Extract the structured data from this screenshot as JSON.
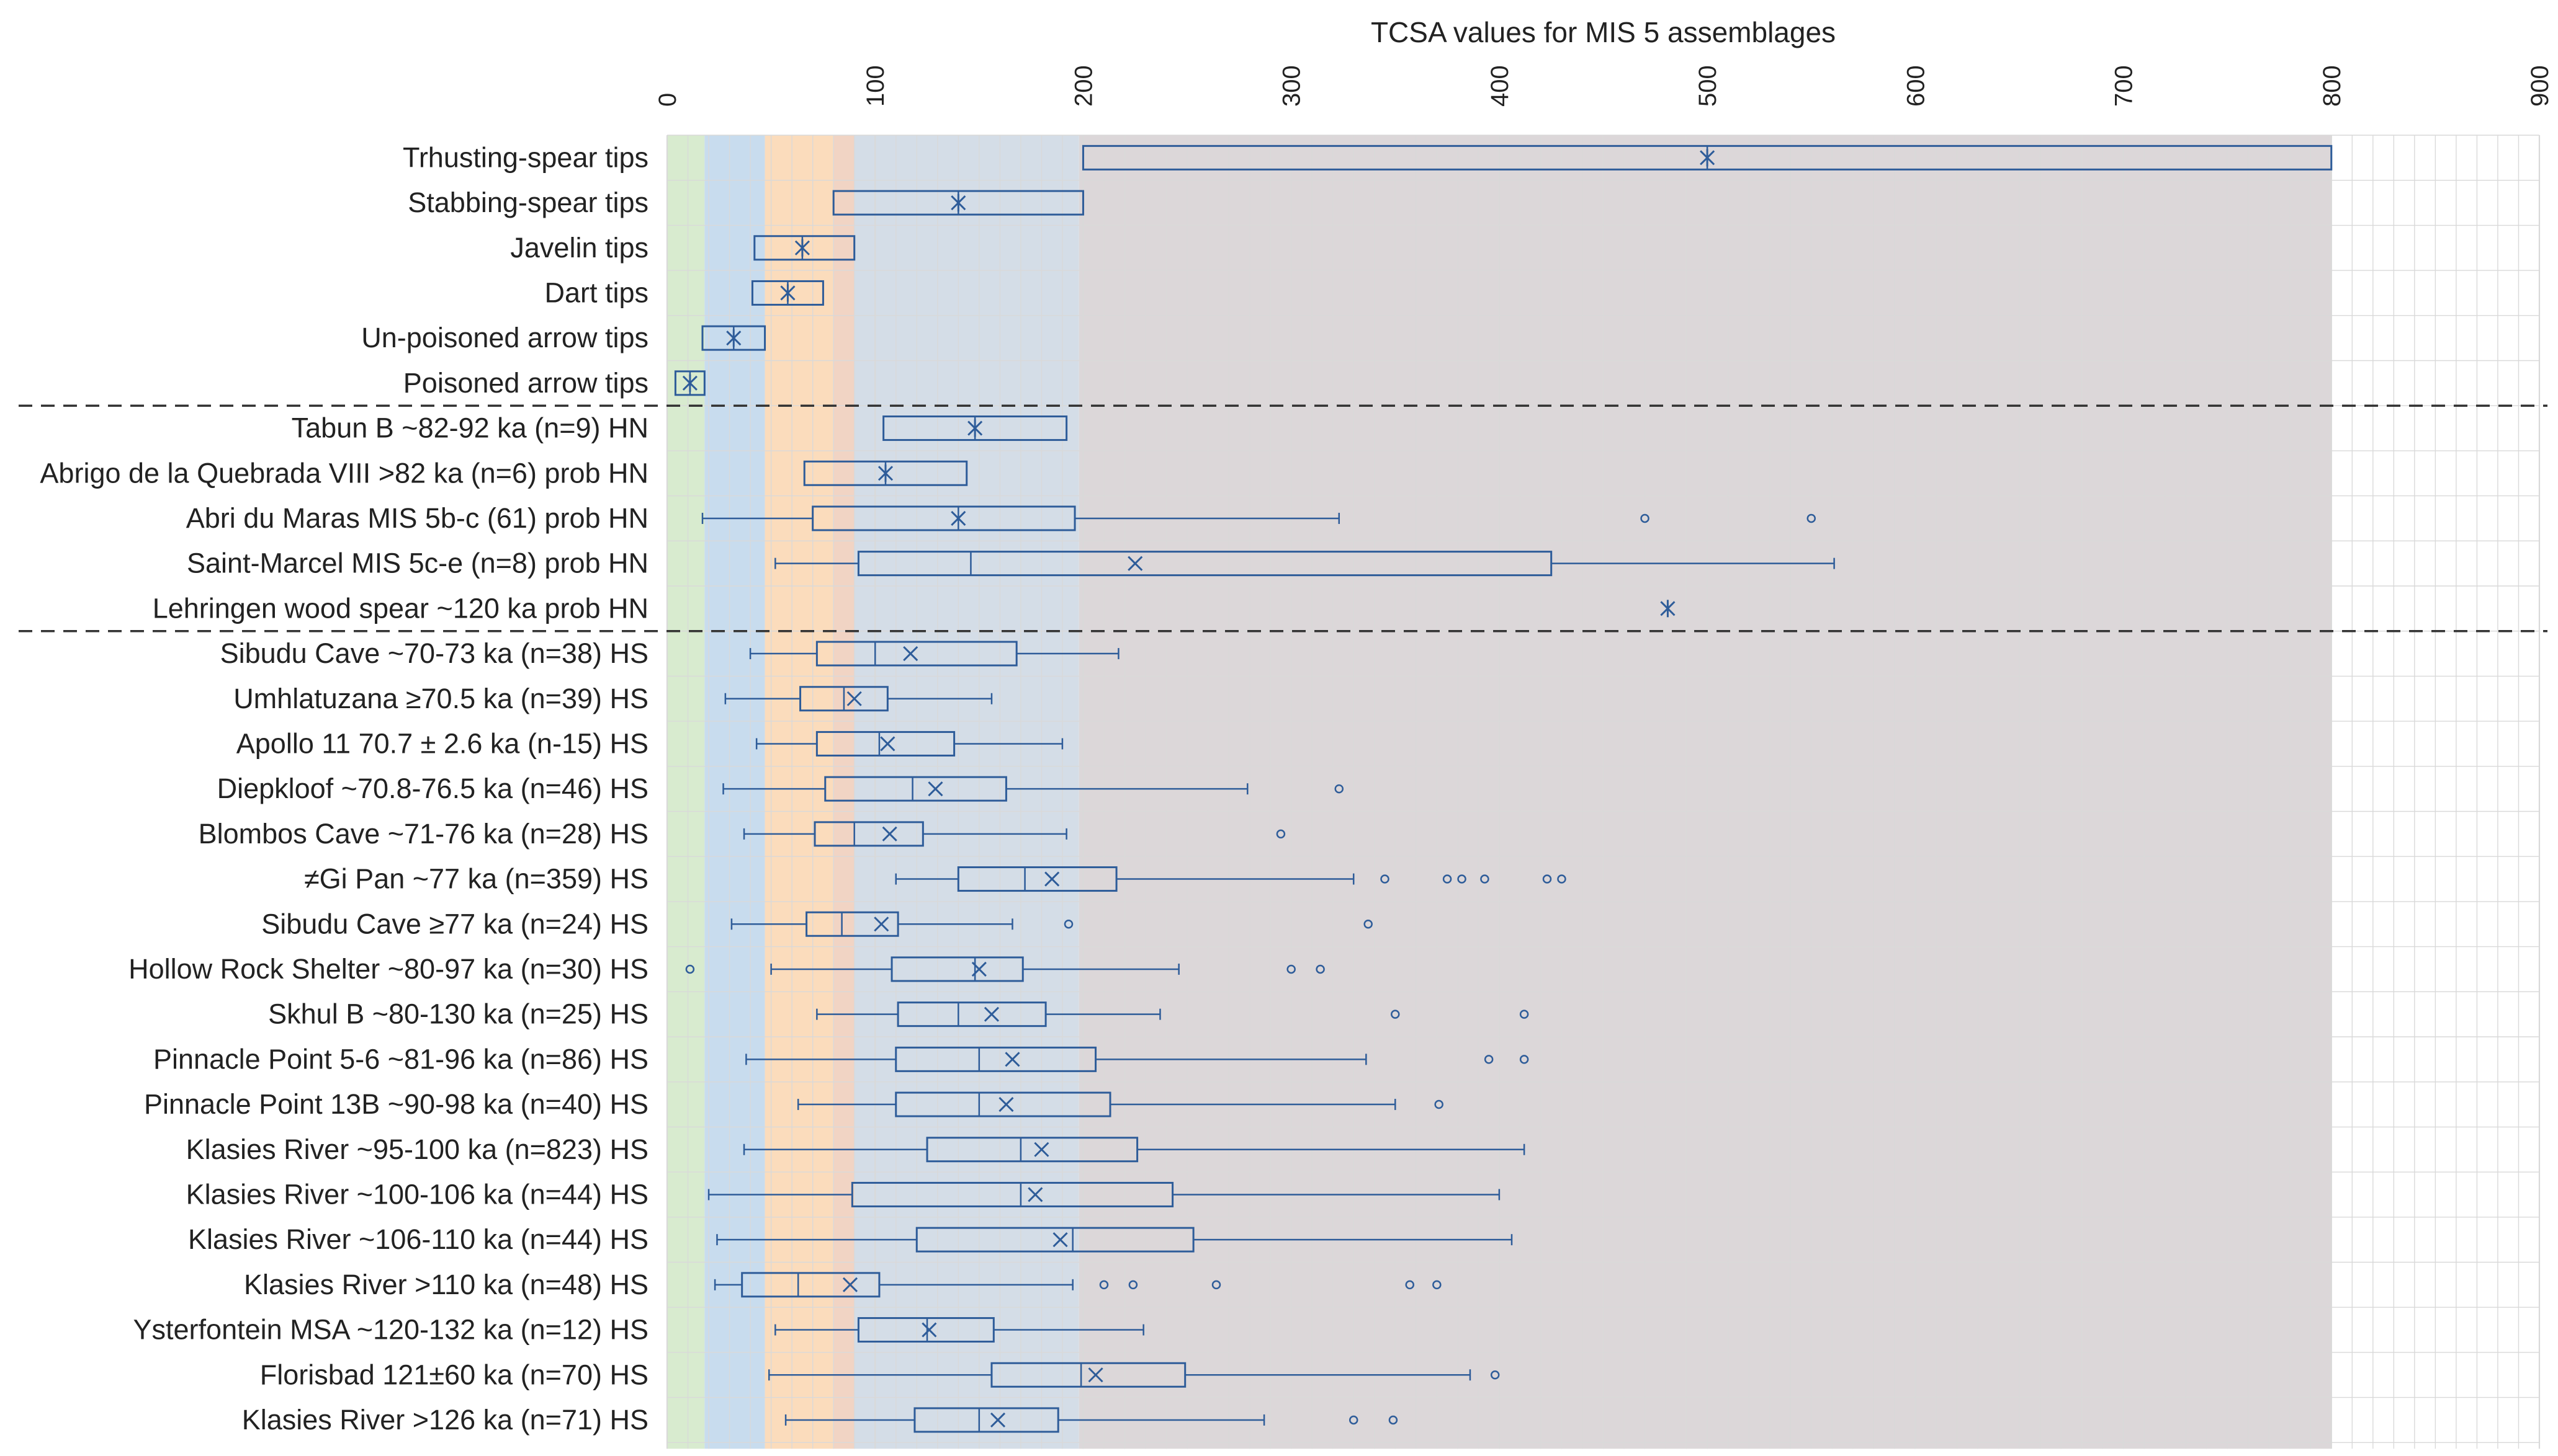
{
  "chart_data": {
    "type": "boxplot",
    "title": "TCSA values for MIS 5 assemblages",
    "xlabel": "",
    "ylabel": "",
    "xlim": [
      0,
      900
    ],
    "x_ticks": [
      0,
      100,
      200,
      300,
      400,
      500,
      600,
      700,
      800,
      900
    ],
    "grid": true,
    "colors": {
      "box_stroke": "#2e5c99",
      "marker": "#2e5c99",
      "divider": "#333333",
      "grid": "#d9d9d9"
    },
    "background_bands": [
      {
        "from": 0,
        "to": 18,
        "color": "#d8ebcf"
      },
      {
        "from": 18,
        "to": 47,
        "color": "#c8dcee"
      },
      {
        "from": 47,
        "to": 80,
        "color": "#fbdcbc"
      },
      {
        "from": 80,
        "to": 90,
        "color": "#f1d4c4"
      },
      {
        "from": 90,
        "to": 198,
        "color": "#d4dde7"
      },
      {
        "from": 198,
        "to": 800,
        "color": "#dcd7d9"
      }
    ],
    "dividers_after_row": [
      5,
      10
    ],
    "rows": [
      {
        "label": "Trhusting-spear tips",
        "min": 200,
        "q1": 200,
        "median": 500,
        "q3": 800,
        "max": 800,
        "mean": 500,
        "outliers": []
      },
      {
        "label": "Stabbing-spear tips",
        "min": 80,
        "q1": 80,
        "median": 140,
        "q3": 200,
        "max": 200,
        "mean": 140,
        "outliers": []
      },
      {
        "label": "Javelin tips",
        "min": 42,
        "q1": 42,
        "median": 65,
        "q3": 90,
        "max": 90,
        "mean": 65,
        "outliers": []
      },
      {
        "label": "Dart tips",
        "min": 41,
        "q1": 41,
        "median": 58,
        "q3": 75,
        "max": 75,
        "mean": 58,
        "outliers": []
      },
      {
        "label": "Un-poisoned arrow tips",
        "min": 17,
        "q1": 17,
        "median": 32,
        "q3": 47,
        "max": 47,
        "mean": 32,
        "outliers": []
      },
      {
        "label": "Poisoned arrow tips",
        "min": 4,
        "q1": 4,
        "median": 11,
        "q3": 18,
        "max": 18,
        "mean": 11,
        "outliers": []
      },
      {
        "label": "Tabun B ~82-92 ka (n=9) HN",
        "min": 104,
        "q1": 104,
        "median": 148,
        "q3": 192,
        "max": 192,
        "mean": 148,
        "outliers": []
      },
      {
        "label": "Abrigo de la Quebrada VIII >82 ka (n=6) prob HN",
        "min": 66,
        "q1": 66,
        "median": 105,
        "q3": 144,
        "max": 144,
        "mean": 105,
        "outliers": []
      },
      {
        "label": "Abri du Maras MIS 5b-c (61) prob HN",
        "min": 17,
        "q1": 70,
        "median": 140,
        "q3": 196,
        "max": 323,
        "mean": 140,
        "outliers": [
          470,
          550
        ]
      },
      {
        "label": "Saint-Marcel MIS 5c-e (n=8) prob HN",
        "min": 52,
        "q1": 92,
        "median": 146,
        "q3": 425,
        "max": 561,
        "mean": 225,
        "outliers": []
      },
      {
        "label": "Lehringen wood spear ~120 ka prob HN",
        "min": 481,
        "q1": 481,
        "median": 481,
        "q3": 481,
        "max": 481,
        "mean": 481,
        "outliers": []
      },
      {
        "label": "Sibudu Cave ~70-73 ka (n=38) HS",
        "min": 40,
        "q1": 72,
        "median": 100,
        "q3": 168,
        "max": 217,
        "mean": 117,
        "outliers": []
      },
      {
        "label": "Umhlatuzana ≥70.5 ka (n=39) HS",
        "min": 28,
        "q1": 64,
        "median": 85,
        "q3": 106,
        "max": 156,
        "mean": 90,
        "outliers": []
      },
      {
        "label": "Apollo 11 70.7 ± 2.6 ka (n-15) HS",
        "min": 43,
        "q1": 72,
        "median": 102,
        "q3": 138,
        "max": 190,
        "mean": 106,
        "outliers": []
      },
      {
        "label": "Diepkloof ~70.8-76.5 ka (n=46) HS",
        "min": 27,
        "q1": 76,
        "median": 118,
        "q3": 163,
        "max": 279,
        "mean": 129,
        "outliers": [
          323
        ]
      },
      {
        "label": "Blombos Cave ~71-76 ka (n=28) HS",
        "min": 37,
        "q1": 71,
        "median": 90,
        "q3": 123,
        "max": 192,
        "mean": 107,
        "outliers": [
          295
        ]
      },
      {
        "label": "≠Gi Pan ~77 ka (n=359) HS",
        "min": 110,
        "q1": 140,
        "median": 172,
        "q3": 216,
        "max": 330,
        "mean": 185,
        "outliers": [
          345,
          375,
          382,
          393,
          423,
          430
        ]
      },
      {
        "label": "Sibudu Cave ≥77 ka (n=24) HS",
        "min": 31,
        "q1": 67,
        "median": 84,
        "q3": 111,
        "max": 166,
        "mean": 103,
        "outliers": [
          193,
          337
        ]
      },
      {
        "label": "Hollow Rock Shelter ~80-97 ka (n=30) HS",
        "min": 50,
        "q1": 108,
        "median": 148,
        "q3": 171,
        "max": 246,
        "mean": 150,
        "outliers": [
          11,
          300,
          314
        ]
      },
      {
        "label": "Skhul B ~80-130 ka (n=25) HS",
        "min": 72,
        "q1": 111,
        "median": 140,
        "q3": 182,
        "max": 237,
        "mean": 156,
        "outliers": [
          350,
          412
        ]
      },
      {
        "label": "Pinnacle Point 5-6 ~81-96 ka (n=86) HS",
        "min": 38,
        "q1": 110,
        "median": 150,
        "q3": 206,
        "max": 336,
        "mean": 166,
        "outliers": [
          395,
          412
        ]
      },
      {
        "label": "Pinnacle Point 13B ~90-98 ka (n=40) HS",
        "min": 63,
        "q1": 110,
        "median": 150,
        "q3": 213,
        "max": 350,
        "mean": 163,
        "outliers": [
          371
        ]
      },
      {
        "label": "Klasies River ~95-100 ka (n=823) HS",
        "min": 37,
        "q1": 125,
        "median": 170,
        "q3": 226,
        "max": 412,
        "mean": 180,
        "outliers": []
      },
      {
        "label": "Klasies River ~100-106 ka (n=44) HS",
        "min": 20,
        "q1": 89,
        "median": 170,
        "q3": 243,
        "max": 400,
        "mean": 177,
        "outliers": []
      },
      {
        "label": "Klasies River ~106-110 ka (n=44) HS",
        "min": 24,
        "q1": 120,
        "median": 195,
        "q3": 253,
        "max": 406,
        "mean": 189,
        "outliers": []
      },
      {
        "label": "Klasies River >110 ka (n=48) HS",
        "min": 23,
        "q1": 36,
        "median": 63,
        "q3": 102,
        "max": 195,
        "mean": 88,
        "outliers": [
          210,
          224,
          264,
          357,
          370
        ]
      },
      {
        "label": "Ysterfontein MSA ~120-132 ka (n=12) HS",
        "min": 52,
        "q1": 92,
        "median": 125,
        "q3": 157,
        "max": 229,
        "mean": 126,
        "outliers": []
      },
      {
        "label": "Florisbad 121±60 ka (n=70) HS",
        "min": 49,
        "q1": 156,
        "median": 199,
        "q3": 249,
        "max": 386,
        "mean": 206,
        "outliers": [
          398
        ]
      },
      {
        "label": "Klasies River >126 ka (n=71) HS",
        "min": 57,
        "q1": 119,
        "median": 150,
        "q3": 188,
        "max": 287,
        "mean": 159,
        "outliers": [
          330,
          349
        ]
      }
    ]
  }
}
